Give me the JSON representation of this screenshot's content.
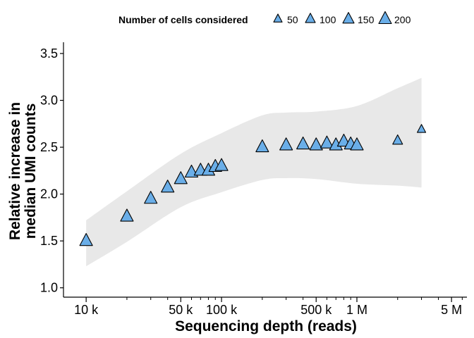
{
  "chart_data": {
    "type": "scatter",
    "title": "",
    "xlabel": "Sequencing depth (reads)",
    "ylabel_lines": [
      "Relative increase in",
      "median UMI counts"
    ],
    "x_scale": "log10",
    "xlim": [
      6800,
      6500000
    ],
    "ylim": [
      0.9,
      3.62
    ],
    "x_ticks": [
      {
        "value": 10000,
        "label": "10 k"
      },
      {
        "value": 50000,
        "label": "50 k"
      },
      {
        "value": 100000,
        "label": "100 k"
      },
      {
        "value": 500000,
        "label": "500 k"
      },
      {
        "value": 1000000,
        "label": "1 M"
      },
      {
        "value": 5000000,
        "label": "5 M"
      }
    ],
    "x_minor_ticks": [
      20000,
      30000,
      40000,
      60000,
      70000,
      80000,
      90000,
      200000,
      300000,
      400000,
      600000,
      700000,
      800000,
      900000,
      2000000,
      3000000,
      4000000,
      6000000
    ],
    "y_ticks": [
      {
        "value": 1.0,
        "label": "1.0"
      },
      {
        "value": 1.5,
        "label": "1.5"
      },
      {
        "value": 2.0,
        "label": "2.0"
      },
      {
        "value": 2.5,
        "label": "2.5"
      },
      {
        "value": 3.0,
        "label": "3.0"
      },
      {
        "value": 3.5,
        "label": "3.5"
      }
    ],
    "legend": {
      "title": "Number of cells considered",
      "position": "top",
      "entries": [
        {
          "label": "50",
          "size": 50
        },
        {
          "label": "100",
          "size": 100
        },
        {
          "label": "150",
          "size": 150
        },
        {
          "label": "200",
          "size": 200
        }
      ]
    },
    "marker": {
      "shape": "triangle",
      "fill": "#6aaee8",
      "stroke": "#000000"
    },
    "band_color": "#e8e8e8",
    "grid": false,
    "points": [
      {
        "x": 10000,
        "y": 1.5,
        "size": 200
      },
      {
        "x": 20000,
        "y": 1.76,
        "size": 200
      },
      {
        "x": 30000,
        "y": 1.95,
        "size": 200
      },
      {
        "x": 40000,
        "y": 2.07,
        "size": 200
      },
      {
        "x": 50000,
        "y": 2.16,
        "size": 200
      },
      {
        "x": 60000,
        "y": 2.23,
        "size": 200
      },
      {
        "x": 70000,
        "y": 2.25,
        "size": 200
      },
      {
        "x": 80000,
        "y": 2.25,
        "size": 200
      },
      {
        "x": 90000,
        "y": 2.29,
        "size": 200
      },
      {
        "x": 100000,
        "y": 2.3,
        "size": 200
      },
      {
        "x": 200000,
        "y": 2.5,
        "size": 200
      },
      {
        "x": 300000,
        "y": 2.52,
        "size": 200
      },
      {
        "x": 400000,
        "y": 2.53,
        "size": 200
      },
      {
        "x": 500000,
        "y": 2.52,
        "size": 200
      },
      {
        "x": 600000,
        "y": 2.54,
        "size": 200
      },
      {
        "x": 700000,
        "y": 2.52,
        "size": 200
      },
      {
        "x": 800000,
        "y": 2.56,
        "size": 200
      },
      {
        "x": 900000,
        "y": 2.53,
        "size": 200
      },
      {
        "x": 1000000,
        "y": 2.52,
        "size": 200
      },
      {
        "x": 2000000,
        "y": 2.57,
        "size": 100
      },
      {
        "x": 3000000,
        "y": 2.69,
        "size": 50
      }
    ],
    "confidence_band": {
      "x": [
        10000,
        20000,
        50000,
        100000,
        200000,
        300000,
        500000,
        1000000,
        2000000,
        3000000
      ],
      "upper": [
        1.72,
        2.03,
        2.43,
        2.65,
        2.84,
        2.87,
        2.88,
        2.94,
        3.13,
        3.24
      ],
      "lower": [
        1.23,
        1.49,
        1.86,
        2.02,
        2.15,
        2.17,
        2.16,
        2.11,
        2.09,
        2.07
      ]
    }
  }
}
